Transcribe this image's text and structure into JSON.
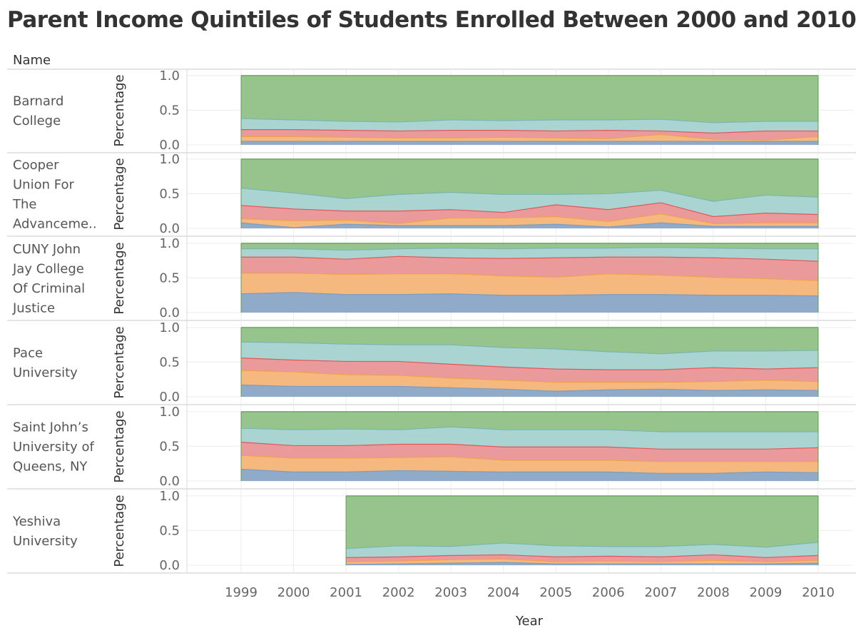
{
  "title": "Parent Income Quintiles of Students Enrolled Between 2000 and 2010",
  "chart_data": {
    "type": "area",
    "stacked": true,
    "row_header": "Name",
    "xlabel": "Year",
    "ylabel": "Percentage",
    "x": [
      1999,
      2000,
      2001,
      2002,
      2003,
      2004,
      2005,
      2006,
      2007,
      2008,
      2009,
      2010
    ],
    "yticks": [
      0.0,
      0.5,
      1.0
    ],
    "ytick_labels": [
      "0.0",
      "0.5",
      "1.0"
    ],
    "ylim": [
      0,
      1.05
    ],
    "grid": true,
    "layer_colors": [
      "#8fabc9",
      "#f5b97f",
      "#eb9a9b",
      "#a9d4d2",
      "#97c48d"
    ],
    "layer_lines": [
      "#7c9cc0",
      "#f0a04b",
      "#e15759",
      "#76b7b2",
      "#59a14f"
    ],
    "panels": [
      {
        "name": "Barnard College",
        "label_lines": [
          "Barnard",
          "College"
        ],
        "x": [
          1999,
          2000,
          2001,
          2002,
          2003,
          2004,
          2005,
          2006,
          2007,
          2008,
          2009,
          2010
        ],
        "cumulative": [
          [
            0.05,
            0.05,
            0.05,
            0.05,
            0.05,
            0.05,
            0.05,
            0.05,
            0.05,
            0.05,
            0.05,
            0.05
          ],
          [
            0.12,
            0.12,
            0.11,
            0.1,
            0.1,
            0.11,
            0.1,
            0.09,
            0.15,
            0.08,
            0.07,
            0.12
          ],
          [
            0.22,
            0.22,
            0.21,
            0.2,
            0.21,
            0.21,
            0.2,
            0.21,
            0.2,
            0.17,
            0.2,
            0.2
          ],
          [
            0.38,
            0.36,
            0.34,
            0.33,
            0.36,
            0.35,
            0.36,
            0.36,
            0.37,
            0.32,
            0.34,
            0.34
          ],
          [
            1.0,
            1.0,
            1.0,
            1.0,
            1.0,
            1.0,
            1.0,
            1.0,
            1.0,
            1.0,
            1.0,
            1.0
          ]
        ]
      },
      {
        "name": "Cooper Union For The Advanceme..",
        "label_lines": [
          "Cooper",
          "Union For",
          "The",
          "Advanceme.."
        ],
        "x": [
          1999,
          2000,
          2001,
          2002,
          2003,
          2004,
          2005,
          2006,
          2007,
          2008,
          2009,
          2010
        ],
        "cumulative": [
          [
            0.08,
            0.01,
            0.06,
            0.04,
            0.04,
            0.04,
            0.06,
            0.02,
            0.08,
            0.03,
            0.03,
            0.03
          ],
          [
            0.14,
            0.11,
            0.12,
            0.07,
            0.15,
            0.15,
            0.17,
            0.1,
            0.21,
            0.07,
            0.08,
            0.08
          ],
          [
            0.33,
            0.28,
            0.25,
            0.25,
            0.27,
            0.23,
            0.34,
            0.27,
            0.37,
            0.17,
            0.22,
            0.2
          ],
          [
            0.58,
            0.51,
            0.43,
            0.49,
            0.52,
            0.49,
            0.49,
            0.5,
            0.55,
            0.39,
            0.48,
            0.45
          ],
          [
            1.0,
            1.0,
            1.0,
            1.0,
            1.0,
            1.0,
            1.0,
            1.0,
            1.0,
            1.0,
            1.0,
            1.0
          ]
        ]
      },
      {
        "name": "CUNY John Jay College Of Criminal Justice",
        "label_lines": [
          "CUNY John",
          "Jay College",
          "Of Criminal",
          "Justice"
        ],
        "x": [
          1999,
          2000,
          2001,
          2002,
          2003,
          2004,
          2005,
          2006,
          2007,
          2008,
          2009,
          2010
        ],
        "cumulative": [
          [
            0.27,
            0.29,
            0.26,
            0.26,
            0.27,
            0.25,
            0.25,
            0.26,
            0.26,
            0.25,
            0.25,
            0.24
          ],
          [
            0.57,
            0.57,
            0.55,
            0.56,
            0.56,
            0.53,
            0.51,
            0.56,
            0.54,
            0.51,
            0.49,
            0.46
          ],
          [
            0.8,
            0.8,
            0.77,
            0.81,
            0.79,
            0.78,
            0.79,
            0.8,
            0.8,
            0.79,
            0.77,
            0.74
          ],
          [
            0.92,
            0.92,
            0.9,
            0.92,
            0.93,
            0.92,
            0.93,
            0.93,
            0.94,
            0.93,
            0.92,
            0.92
          ],
          [
            1.0,
            1.0,
            1.0,
            1.0,
            1.0,
            1.0,
            1.0,
            1.0,
            1.0,
            1.0,
            1.0,
            1.0
          ]
        ]
      },
      {
        "name": "Pace University",
        "label_lines": [
          "Pace",
          "University"
        ],
        "x": [
          1999,
          2000,
          2001,
          2002,
          2003,
          2004,
          2005,
          2006,
          2007,
          2008,
          2009,
          2010
        ],
        "cumulative": [
          [
            0.17,
            0.15,
            0.15,
            0.15,
            0.13,
            0.11,
            0.08,
            0.1,
            0.11,
            0.09,
            0.1,
            0.09
          ],
          [
            0.38,
            0.36,
            0.32,
            0.31,
            0.27,
            0.24,
            0.21,
            0.21,
            0.21,
            0.22,
            0.24,
            0.22
          ],
          [
            0.56,
            0.53,
            0.51,
            0.51,
            0.47,
            0.43,
            0.4,
            0.39,
            0.39,
            0.42,
            0.4,
            0.42
          ],
          [
            0.79,
            0.78,
            0.76,
            0.75,
            0.75,
            0.71,
            0.69,
            0.65,
            0.62,
            0.66,
            0.66,
            0.67
          ],
          [
            1.0,
            1.0,
            1.0,
            1.0,
            1.0,
            1.0,
            1.0,
            1.0,
            1.0,
            1.0,
            1.0,
            1.0
          ]
        ]
      },
      {
        "name": "Saint John’s University of Queens, NY",
        "label_lines": [
          "Saint John’s",
          "University of",
          "Queens, NY"
        ],
        "x": [
          1999,
          2000,
          2001,
          2002,
          2003,
          2004,
          2005,
          2006,
          2007,
          2008,
          2009,
          2010
        ],
        "cumulative": [
          [
            0.17,
            0.13,
            0.13,
            0.15,
            0.14,
            0.13,
            0.13,
            0.13,
            0.11,
            0.11,
            0.13,
            0.12
          ],
          [
            0.37,
            0.33,
            0.33,
            0.34,
            0.35,
            0.3,
            0.3,
            0.3,
            0.28,
            0.28,
            0.28,
            0.28
          ],
          [
            0.56,
            0.51,
            0.51,
            0.53,
            0.53,
            0.49,
            0.49,
            0.49,
            0.46,
            0.46,
            0.46,
            0.48
          ],
          [
            0.76,
            0.74,
            0.75,
            0.74,
            0.78,
            0.74,
            0.74,
            0.74,
            0.71,
            0.71,
            0.71,
            0.71
          ],
          [
            1.0,
            1.0,
            1.0,
            1.0,
            1.0,
            1.0,
            1.0,
            1.0,
            1.0,
            1.0,
            1.0,
            1.0
          ]
        ]
      },
      {
        "name": "Yeshiva University",
        "label_lines": [
          "Yeshiva",
          "University"
        ],
        "x": [
          2001,
          2002,
          2003,
          2004,
          2005,
          2006,
          2007,
          2008,
          2009,
          2010
        ],
        "cumulative": [
          [
            0.01,
            0.02,
            0.03,
            0.04,
            0.02,
            0.02,
            0.02,
            0.02,
            0.02,
            0.03
          ],
          [
            0.05,
            0.06,
            0.08,
            0.09,
            0.05,
            0.06,
            0.05,
            0.07,
            0.05,
            0.07
          ],
          [
            0.11,
            0.12,
            0.14,
            0.15,
            0.12,
            0.13,
            0.12,
            0.15,
            0.11,
            0.14
          ],
          [
            0.24,
            0.28,
            0.27,
            0.32,
            0.28,
            0.27,
            0.27,
            0.3,
            0.26,
            0.33
          ],
          [
            1.0,
            1.0,
            1.0,
            1.0,
            1.0,
            1.0,
            1.0,
            1.0,
            1.0,
            1.0
          ]
        ]
      }
    ]
  }
}
